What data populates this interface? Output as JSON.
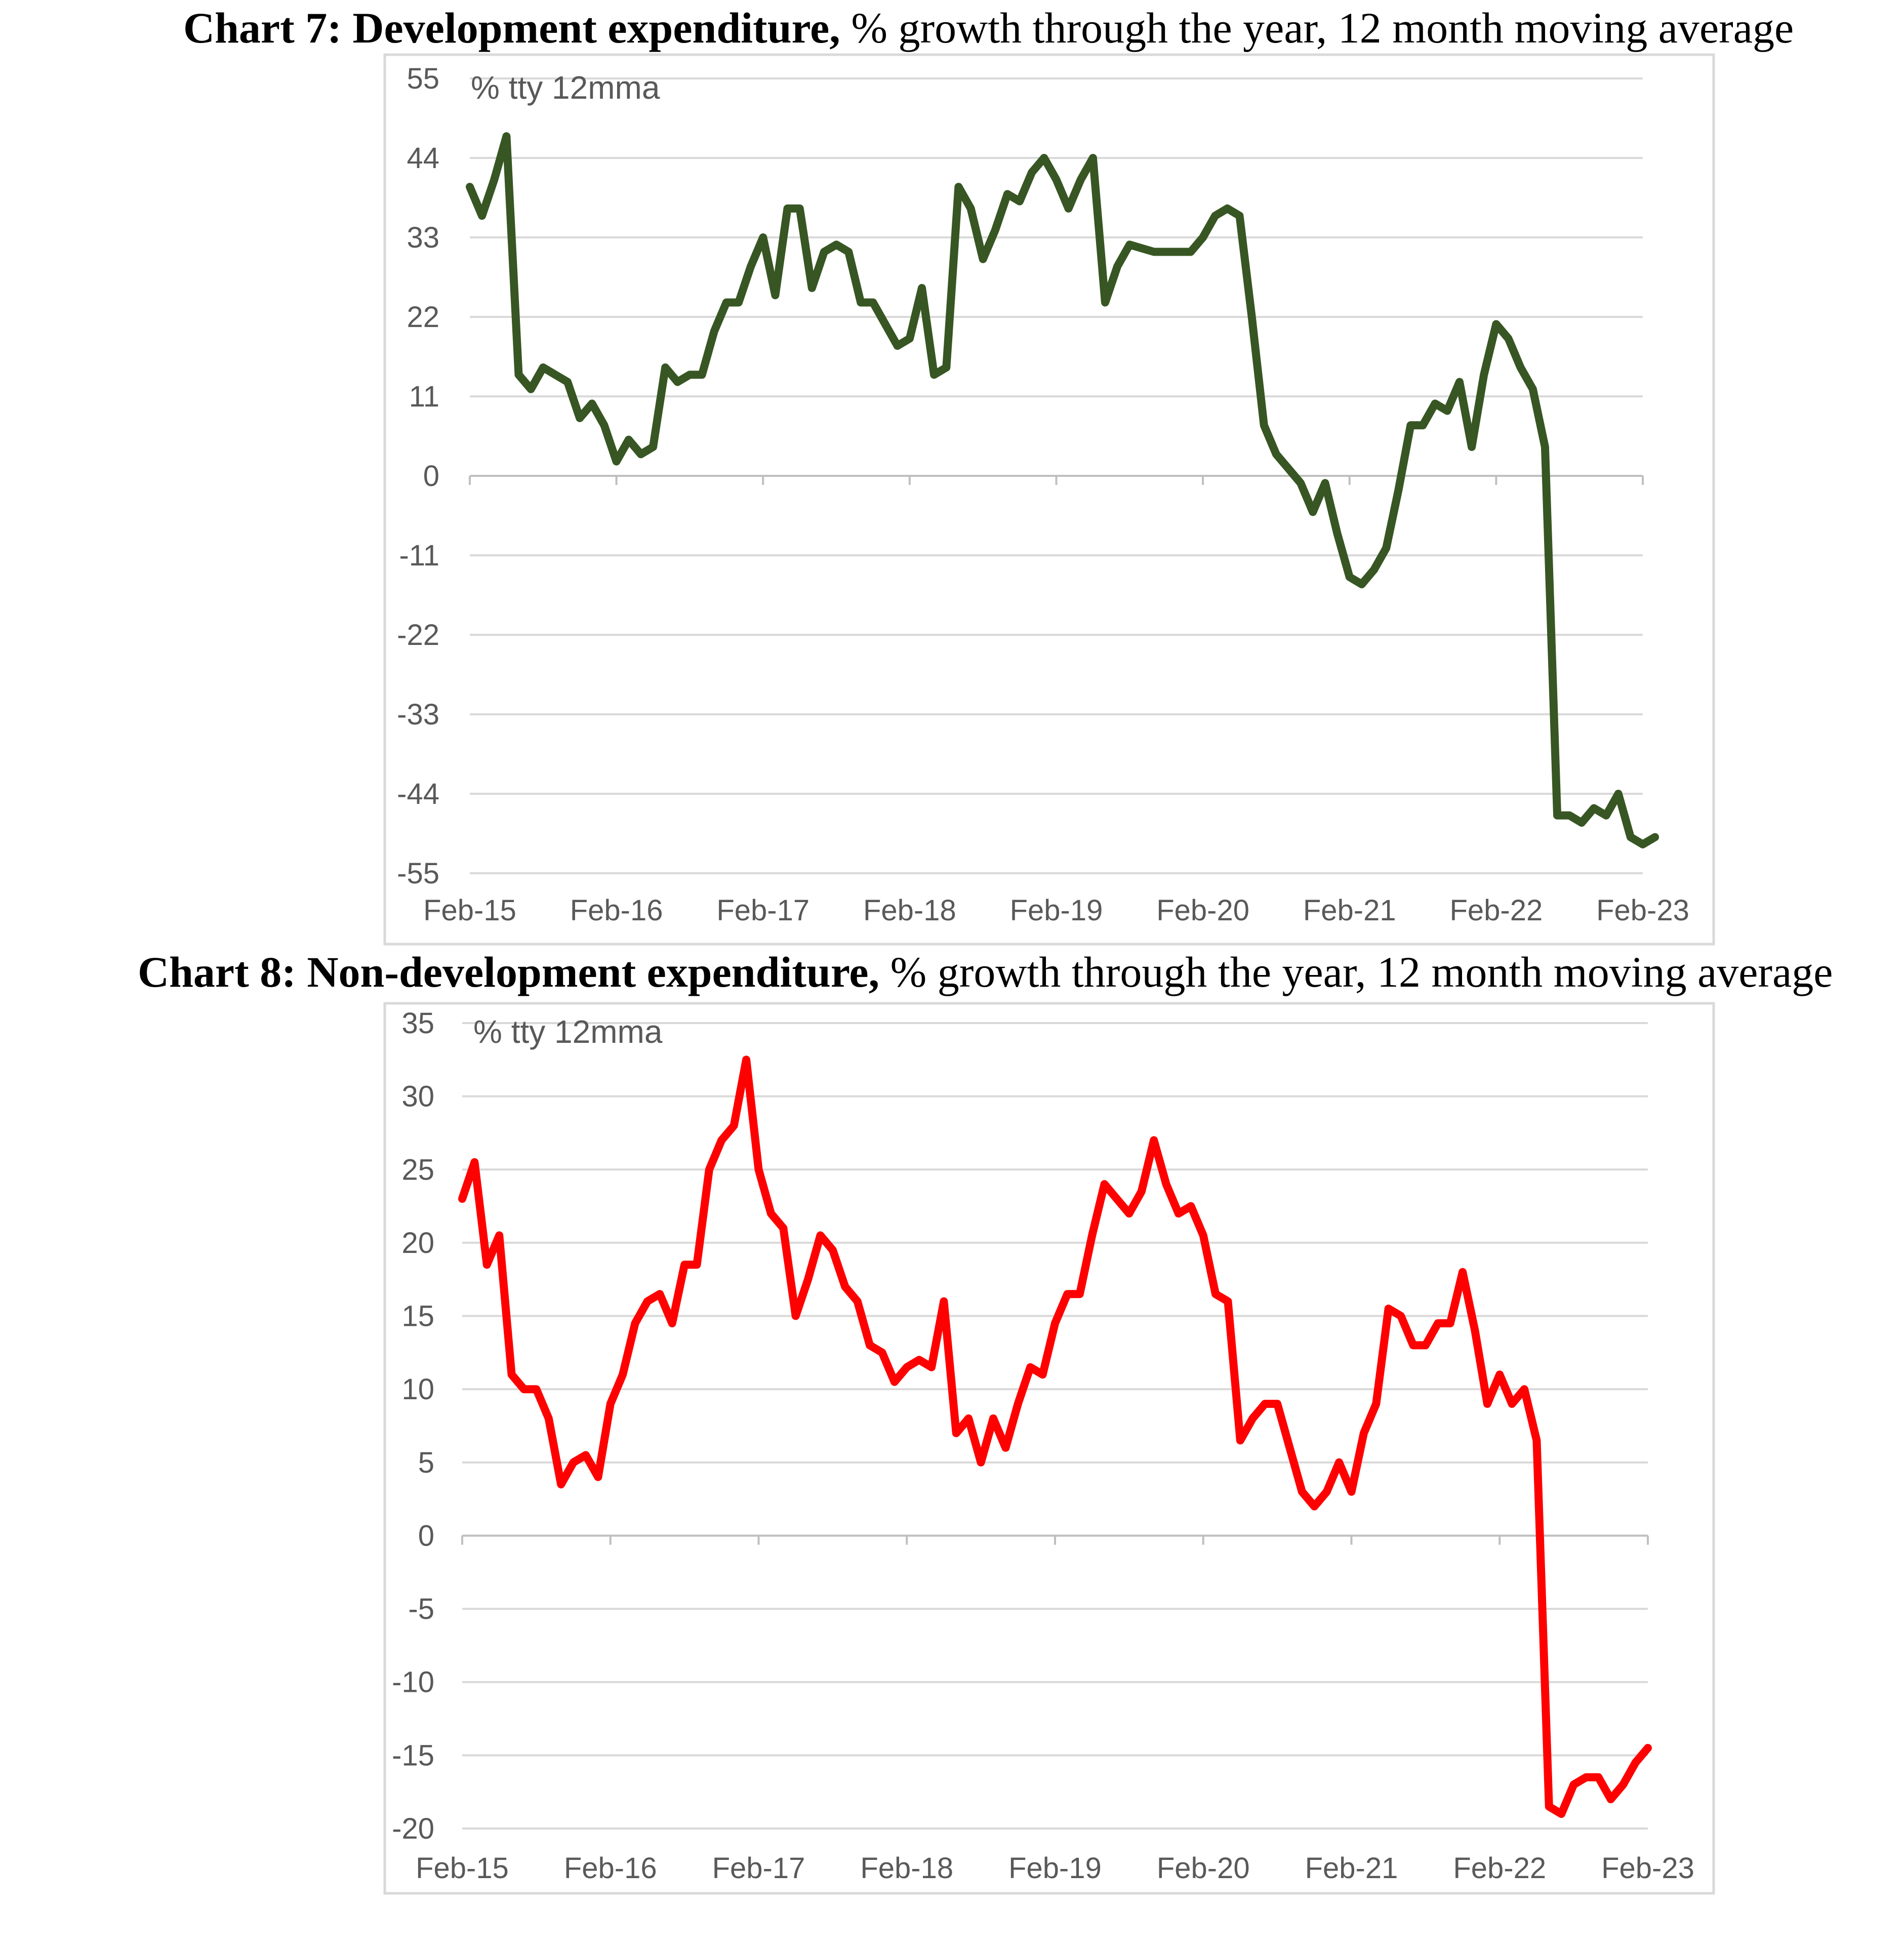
{
  "chart_data": [
    {
      "type": "line",
      "title_bold": "Chart 7: Development expenditure,",
      "title_rest": " % growth through the year, 12 month moving average",
      "unit_label": "% tty 12mma",
      "y_ticks": [
        "55",
        "44",
        "33",
        "22",
        "11",
        "0",
        "-11",
        "-22",
        "-33",
        "-44",
        "-55"
      ],
      "ylim": [
        -55,
        55
      ],
      "x_ticks": [
        "Feb-15",
        "Feb-16",
        "Feb-17",
        "Feb-18",
        "Feb-19",
        "Feb-20",
        "Feb-21",
        "Feb-22",
        "Feb-23"
      ],
      "grid": true,
      "line_color": "#375623",
      "x_start_month": "Feb-15",
      "series": [
        {
          "values": [
            40,
            36,
            41,
            47,
            14,
            12,
            15,
            14,
            13,
            8,
            10,
            7,
            2,
            5,
            3,
            4,
            15,
            13,
            14,
            14,
            20,
            24,
            24,
            29,
            33,
            25,
            37,
            37,
            26,
            31,
            32,
            31,
            24,
            24,
            21,
            18,
            19,
            26,
            14,
            15,
            40,
            37,
            30,
            34,
            39,
            38,
            42,
            44,
            41,
            37,
            41,
            44,
            24,
            29,
            32,
            31.5,
            31,
            31,
            31,
            31,
            33,
            36,
            37,
            36,
            22,
            7,
            3,
            1,
            -1,
            -5,
            -1,
            -8,
            -14,
            -15,
            -13,
            -10,
            -2,
            7,
            7,
            10,
            9,
            13,
            4,
            14,
            21,
            19,
            15,
            12,
            4,
            -47,
            -47,
            -48,
            -46,
            -47,
            -44,
            -50,
            -51,
            -50
          ]
        }
      ]
    },
    {
      "type": "line",
      "title_bold": "Chart 8: Non-development expenditure,",
      "title_rest": " % growth through the year, 12 month moving average",
      "unit_label": "% tty 12mma",
      "y_ticks": [
        "35",
        "30",
        "25",
        "20",
        "15",
        "10",
        "5",
        "0",
        "-5",
        "-10",
        "-15",
        "-20"
      ],
      "ylim": [
        -20,
        35
      ],
      "x_ticks": [
        "Feb-15",
        "Feb-16",
        "Feb-17",
        "Feb-18",
        "Feb-19",
        "Feb-20",
        "Feb-21",
        "Feb-22",
        "Feb-23"
      ],
      "grid": true,
      "line_color": "#ff0000",
      "x_start_month": "Feb-15",
      "series": [
        {
          "values": [
            23,
            25.5,
            18.5,
            20.5,
            11,
            10,
            10,
            8,
            3.5,
            5,
            5.5,
            4,
            9,
            11,
            14.5,
            16,
            16.5,
            14.5,
            18.5,
            18.5,
            25,
            27,
            28,
            32.5,
            25,
            22,
            21,
            15,
            17.5,
            20.5,
            19.5,
            17,
            16,
            13,
            12.5,
            10.5,
            11.5,
            12,
            11.5,
            16,
            7,
            8,
            5,
            8,
            6,
            9,
            11.5,
            11,
            14.5,
            16.5,
            16.5,
            20.5,
            24,
            23,
            22,
            23.5,
            27,
            24,
            22,
            22.5,
            20.5,
            16.5,
            16,
            6.5,
            8,
            9,
            9,
            6,
            3,
            2,
            3,
            5,
            3,
            7,
            9,
            15.5,
            15,
            13,
            13,
            14.5,
            14.5,
            18,
            14,
            9,
            11,
            9,
            10,
            6.5,
            -18.5,
            -19,
            -17,
            -16.5,
            -16.5,
            -18,
            -17,
            -15.5,
            -14.5
          ]
        }
      ]
    }
  ]
}
